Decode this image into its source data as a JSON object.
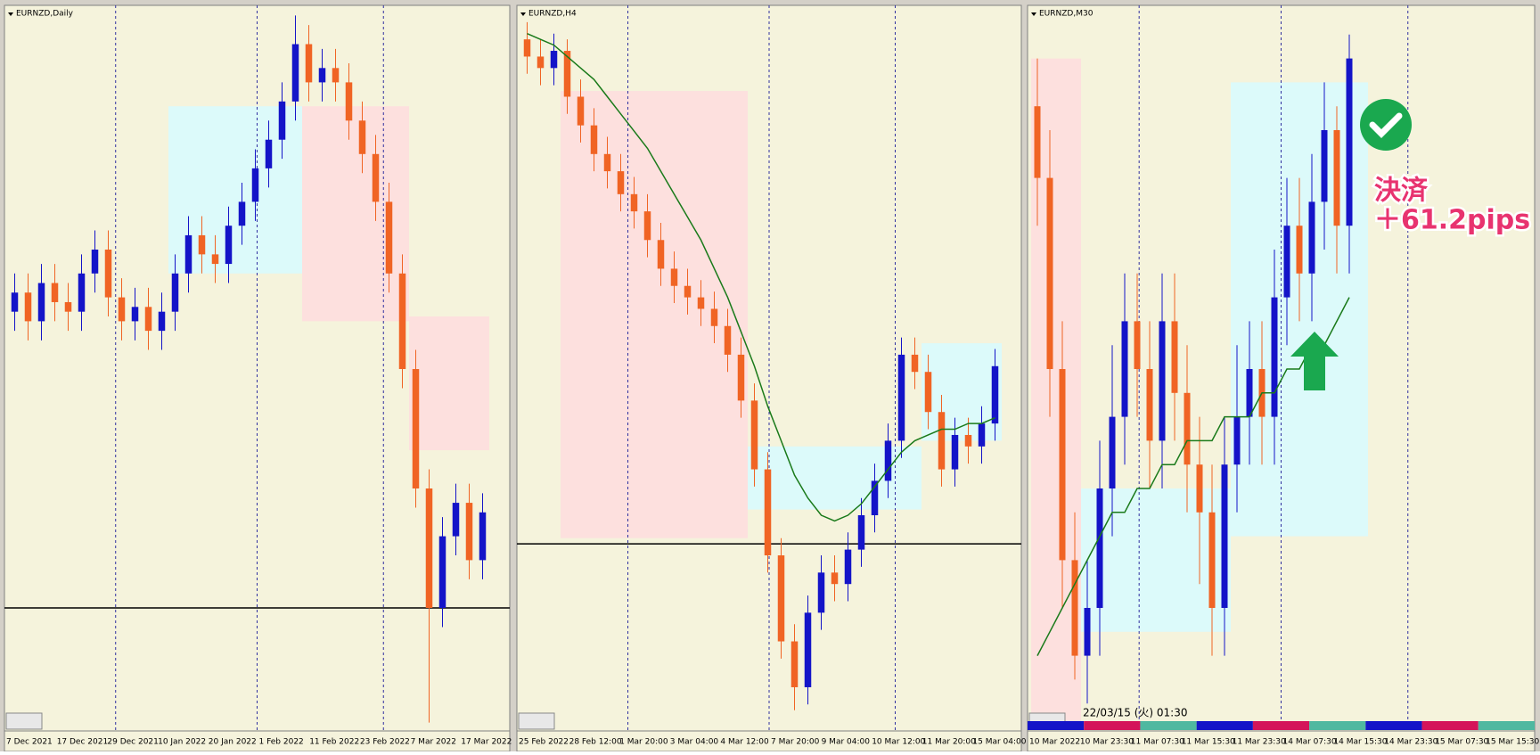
{
  "chart_data": [
    {
      "type": "candlestick",
      "title": "EURNZD,Daily",
      "x_labels": [
        "7 Dec 2021",
        "17 Dec 2021",
        "29 Dec 2021",
        "10 Jan 2022",
        "20 Jan 2022",
        "1 Feb 2022",
        "11 Feb 2022",
        "23 Feb 2022",
        "7 Mar 2022",
        "17 Mar 2022"
      ],
      "ylim": [
        1.565,
        1.715
      ],
      "up_color": "#1414c8",
      "down_color": "#f06424",
      "open": [
        1.652,
        1.656,
        1.65,
        1.658,
        1.654,
        1.652,
        1.66,
        1.665,
        1.655,
        1.65,
        1.653,
        1.648,
        1.652,
        1.66,
        1.668,
        1.664,
        1.662,
        1.67,
        1.675,
        1.682,
        1.688,
        1.696,
        1.708,
        1.7,
        1.703,
        1.7,
        1.692,
        1.685,
        1.675,
        1.66,
        1.64,
        1.615,
        1.59,
        1.605,
        1.612,
        1.6
      ],
      "close": [
        1.656,
        1.65,
        1.658,
        1.654,
        1.652,
        1.66,
        1.665,
        1.655,
        1.65,
        1.653,
        1.648,
        1.652,
        1.66,
        1.668,
        1.664,
        1.662,
        1.67,
        1.675,
        1.682,
        1.688,
        1.696,
        1.708,
        1.7,
        1.703,
        1.7,
        1.692,
        1.685,
        1.675,
        1.66,
        1.64,
        1.615,
        1.59,
        1.605,
        1.612,
        1.6,
        1.61
      ],
      "high": [
        1.66,
        1.66,
        1.662,
        1.662,
        1.658,
        1.664,
        1.669,
        1.669,
        1.659,
        1.657,
        1.657,
        1.656,
        1.664,
        1.672,
        1.672,
        1.668,
        1.674,
        1.679,
        1.686,
        1.692,
        1.7,
        1.714,
        1.712,
        1.707,
        1.707,
        1.704,
        1.696,
        1.689,
        1.679,
        1.664,
        1.644,
        1.619,
        1.609,
        1.616,
        1.616,
        1.614
      ],
      "low": [
        1.648,
        1.646,
        1.646,
        1.65,
        1.648,
        1.648,
        1.656,
        1.651,
        1.646,
        1.646,
        1.644,
        1.644,
        1.648,
        1.656,
        1.66,
        1.658,
        1.658,
        1.666,
        1.671,
        1.678,
        1.684,
        1.692,
        1.696,
        1.696,
        1.696,
        1.688,
        1.681,
        1.671,
        1.656,
        1.636,
        1.611,
        1.566,
        1.586,
        1.601,
        1.596,
        1.596
      ],
      "hline": 1.59,
      "zones": [
        {
          "from": 12,
          "to": 22,
          "low": 1.66,
          "high": 1.695,
          "color": "#dcfafa"
        },
        {
          "from": 22,
          "to": 30,
          "low": 1.65,
          "high": 1.695,
          "color": "#fde0de"
        },
        {
          "from": 30,
          "to": 36,
          "low": 1.623,
          "high": 1.651,
          "color": "#fde0de"
        }
      ]
    },
    {
      "type": "candlestick",
      "title": "EURNZD,H4",
      "x_labels": [
        "25 Feb 2022",
        "28 Feb 12:00",
        "1 Mar 20:00",
        "3 Mar 04:00",
        "4 Mar 12:00",
        "7 Mar 20:00",
        "9 Mar 04:00",
        "10 Mar 12:00",
        "11 Mar 20:00",
        "15 Mar 04:00"
      ],
      "ylim": [
        1.575,
        1.7
      ],
      "up_color": "#1414c8",
      "down_color": "#f06424",
      "ma_color": "#1a7a1a",
      "open": [
        1.695,
        1.692,
        1.69,
        1.693,
        1.685,
        1.68,
        1.675,
        1.672,
        1.668,
        1.665,
        1.66,
        1.655,
        1.652,
        1.65,
        1.648,
        1.645,
        1.64,
        1.632,
        1.62,
        1.605,
        1.59,
        1.582,
        1.595,
        1.602,
        1.6,
        1.606,
        1.612,
        1.618,
        1.625,
        1.64,
        1.637,
        1.63,
        1.62,
        1.626,
        1.624,
        1.628
      ],
      "close": [
        1.692,
        1.69,
        1.693,
        1.685,
        1.68,
        1.675,
        1.672,
        1.668,
        1.665,
        1.66,
        1.655,
        1.652,
        1.65,
        1.648,
        1.645,
        1.64,
        1.632,
        1.62,
        1.605,
        1.59,
        1.582,
        1.595,
        1.602,
        1.6,
        1.606,
        1.612,
        1.618,
        1.625,
        1.64,
        1.637,
        1.63,
        1.62,
        1.626,
        1.624,
        1.628,
        1.638
      ],
      "high": [
        1.698,
        1.695,
        1.696,
        1.695,
        1.688,
        1.683,
        1.678,
        1.675,
        1.671,
        1.668,
        1.663,
        1.658,
        1.655,
        1.653,
        1.651,
        1.648,
        1.643,
        1.635,
        1.623,
        1.608,
        1.593,
        1.598,
        1.605,
        1.605,
        1.609,
        1.615,
        1.621,
        1.628,
        1.643,
        1.643,
        1.64,
        1.633,
        1.629,
        1.629,
        1.631,
        1.641
      ],
      "low": [
        1.689,
        1.687,
        1.687,
        1.682,
        1.677,
        1.672,
        1.669,
        1.665,
        1.662,
        1.657,
        1.652,
        1.649,
        1.647,
        1.645,
        1.642,
        1.637,
        1.629,
        1.617,
        1.602,
        1.587,
        1.578,
        1.579,
        1.592,
        1.597,
        1.597,
        1.603,
        1.609,
        1.615,
        1.622,
        1.634,
        1.627,
        1.617,
        1.617,
        1.621,
        1.621,
        1.625
      ],
      "ma": [
        1.696,
        1.695,
        1.694,
        1.692,
        1.69,
        1.688,
        1.685,
        1.682,
        1.679,
        1.676,
        1.672,
        1.668,
        1.664,
        1.66,
        1.655,
        1.65,
        1.644,
        1.638,
        1.631,
        1.625,
        1.619,
        1.615,
        1.612,
        1.611,
        1.612,
        1.614,
        1.617,
        1.62,
        1.623,
        1.625,
        1.626,
        1.627,
        1.627,
        1.628,
        1.628,
        1.629
      ],
      "hline": 1.607,
      "zones": [
        {
          "from": 3,
          "to": 17,
          "low": 1.608,
          "high": 1.686,
          "color": "#fde0de"
        },
        {
          "from": 17,
          "to": 30,
          "low": 1.613,
          "high": 1.624,
          "color": "#dcfafa"
        },
        {
          "from": 30,
          "to": 36,
          "low": 1.625,
          "high": 1.642,
          "color": "#dcfafa"
        }
      ]
    },
    {
      "type": "candlestick",
      "title": "EURNZD,M30",
      "x_labels": [
        "10 Mar 2022",
        "10 Mar 23:30",
        "11 Mar 07:30",
        "11 Mar 15:30",
        "11 Mar 23:30",
        "14 Mar 07:30",
        "14 Mar 15:30",
        "14 Mar 23:30",
        "15 Mar 07:30",
        "15 Mar 15:30"
      ],
      "ylim": [
        1.615,
        1.645
      ],
      "up_color": "#1414c8",
      "down_color": "#f06424",
      "ma_color": "#1a7a1a",
      "open": [
        1.641,
        1.638,
        1.63,
        1.622,
        1.618,
        1.62,
        1.625,
        1.628,
        1.632,
        1.63,
        1.627,
        1.632,
        1.629,
        1.626,
        1.624,
        1.62,
        1.626,
        1.628,
        1.63,
        1.628,
        1.633,
        1.636,
        1.634,
        1.637,
        1.64,
        1.636
      ],
      "close": [
        1.638,
        1.63,
        1.622,
        1.618,
        1.62,
        1.625,
        1.628,
        1.632,
        1.63,
        1.627,
        1.632,
        1.629,
        1.626,
        1.624,
        1.62,
        1.626,
        1.628,
        1.63,
        1.628,
        1.633,
        1.636,
        1.634,
        1.637,
        1.64,
        1.636,
        1.643
      ],
      "high": [
        1.643,
        1.64,
        1.632,
        1.624,
        1.622,
        1.627,
        1.631,
        1.634,
        1.634,
        1.632,
        1.634,
        1.634,
        1.631,
        1.628,
        1.626,
        1.628,
        1.631,
        1.632,
        1.632,
        1.635,
        1.638,
        1.638,
        1.639,
        1.642,
        1.641,
        1.644
      ],
      "low": [
        1.636,
        1.628,
        1.62,
        1.617,
        1.616,
        1.618,
        1.623,
        1.626,
        1.628,
        1.625,
        1.625,
        1.627,
        1.624,
        1.621,
        1.618,
        1.618,
        1.624,
        1.626,
        1.626,
        1.626,
        1.631,
        1.632,
        1.632,
        1.635,
        1.634,
        1.634
      ],
      "ma": [
        1.618,
        1.619,
        1.62,
        1.621,
        1.622,
        1.623,
        1.624,
        1.624,
        1.625,
        1.625,
        1.626,
        1.626,
        1.627,
        1.627,
        1.627,
        1.628,
        1.628,
        1.628,
        1.629,
        1.629,
        1.63,
        1.63,
        1.631,
        1.631,
        1.632,
        1.633
      ],
      "zones": [
        {
          "from": 0,
          "to": 4,
          "low": 1.615,
          "high": 1.643,
          "color": "#fde0de"
        },
        {
          "from": 4,
          "to": 16,
          "low": 1.619,
          "high": 1.625,
          "color": "#dcfafa"
        },
        {
          "from": 16,
          "to": 27,
          "low": 1.623,
          "high": 1.642,
          "color": "#dcfafa"
        }
      ],
      "annotations": {
        "action": "決済",
        "result": "＋61.2pips",
        "timestamp": "22/03/15 (火) 01:30"
      }
    }
  ]
}
